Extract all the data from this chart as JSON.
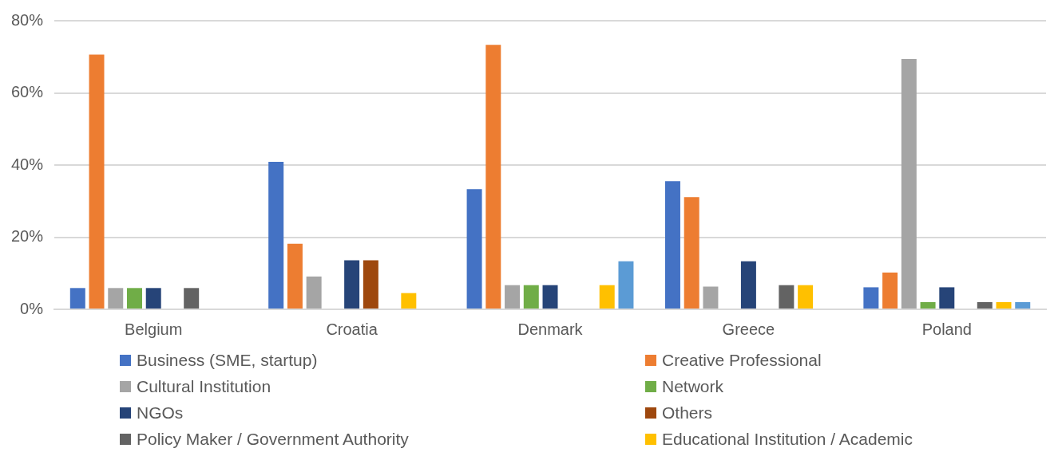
{
  "chart_data": {
    "type": "bar",
    "categories": [
      "Belgium",
      "Croatia",
      "Denmark",
      "Greece",
      "Poland"
    ],
    "series": [
      {
        "name": "Business (SME, startup)",
        "color": "#4472c4",
        "values": [
          5.9,
          40.9,
          33.3,
          35.5,
          6.1
        ]
      },
      {
        "name": "Creative Professional",
        "color": "#ed7d31",
        "values": [
          70.6,
          18.2,
          73.3,
          31.1,
          10.2
        ]
      },
      {
        "name": "Cultural Institution",
        "color": "#a5a5a5",
        "values": [
          5.9,
          9.1,
          6.7,
          6.3,
          69.4
        ]
      },
      {
        "name": "Network",
        "color": "#70ad47",
        "values": [
          5.9,
          0,
          6.7,
          0,
          2.0
        ]
      },
      {
        "name": "NGOs",
        "color": "#264478",
        "values": [
          5.9,
          13.6,
          6.7,
          13.3,
          6.1
        ]
      },
      {
        "name": "Others",
        "color": "#9e480e",
        "values": [
          0,
          13.6,
          0,
          0,
          0
        ]
      },
      {
        "name": "Policy Maker / Government Authority",
        "color": "#636363",
        "values": [
          5.9,
          0,
          0,
          6.7,
          2.0
        ]
      },
      {
        "name": "Educational Institution / Academic",
        "color": "#ffc000",
        "values": [
          0,
          4.5,
          6.7,
          6.7,
          2.0
        ]
      },
      {
        "color": "#5b9bd5",
        "values": [
          0,
          0,
          13.3,
          0,
          2.0
        ]
      }
    ],
    "ylim": [
      0,
      80
    ],
    "yticks": [
      {
        "value": 0,
        "label": "0%"
      },
      {
        "value": 20,
        "label": "20%"
      },
      {
        "value": 40,
        "label": "40%"
      },
      {
        "value": 60,
        "label": "60%"
      },
      {
        "value": 80,
        "label": "80%"
      }
    ],
    "grid": "y",
    "legend": "bottom"
  }
}
